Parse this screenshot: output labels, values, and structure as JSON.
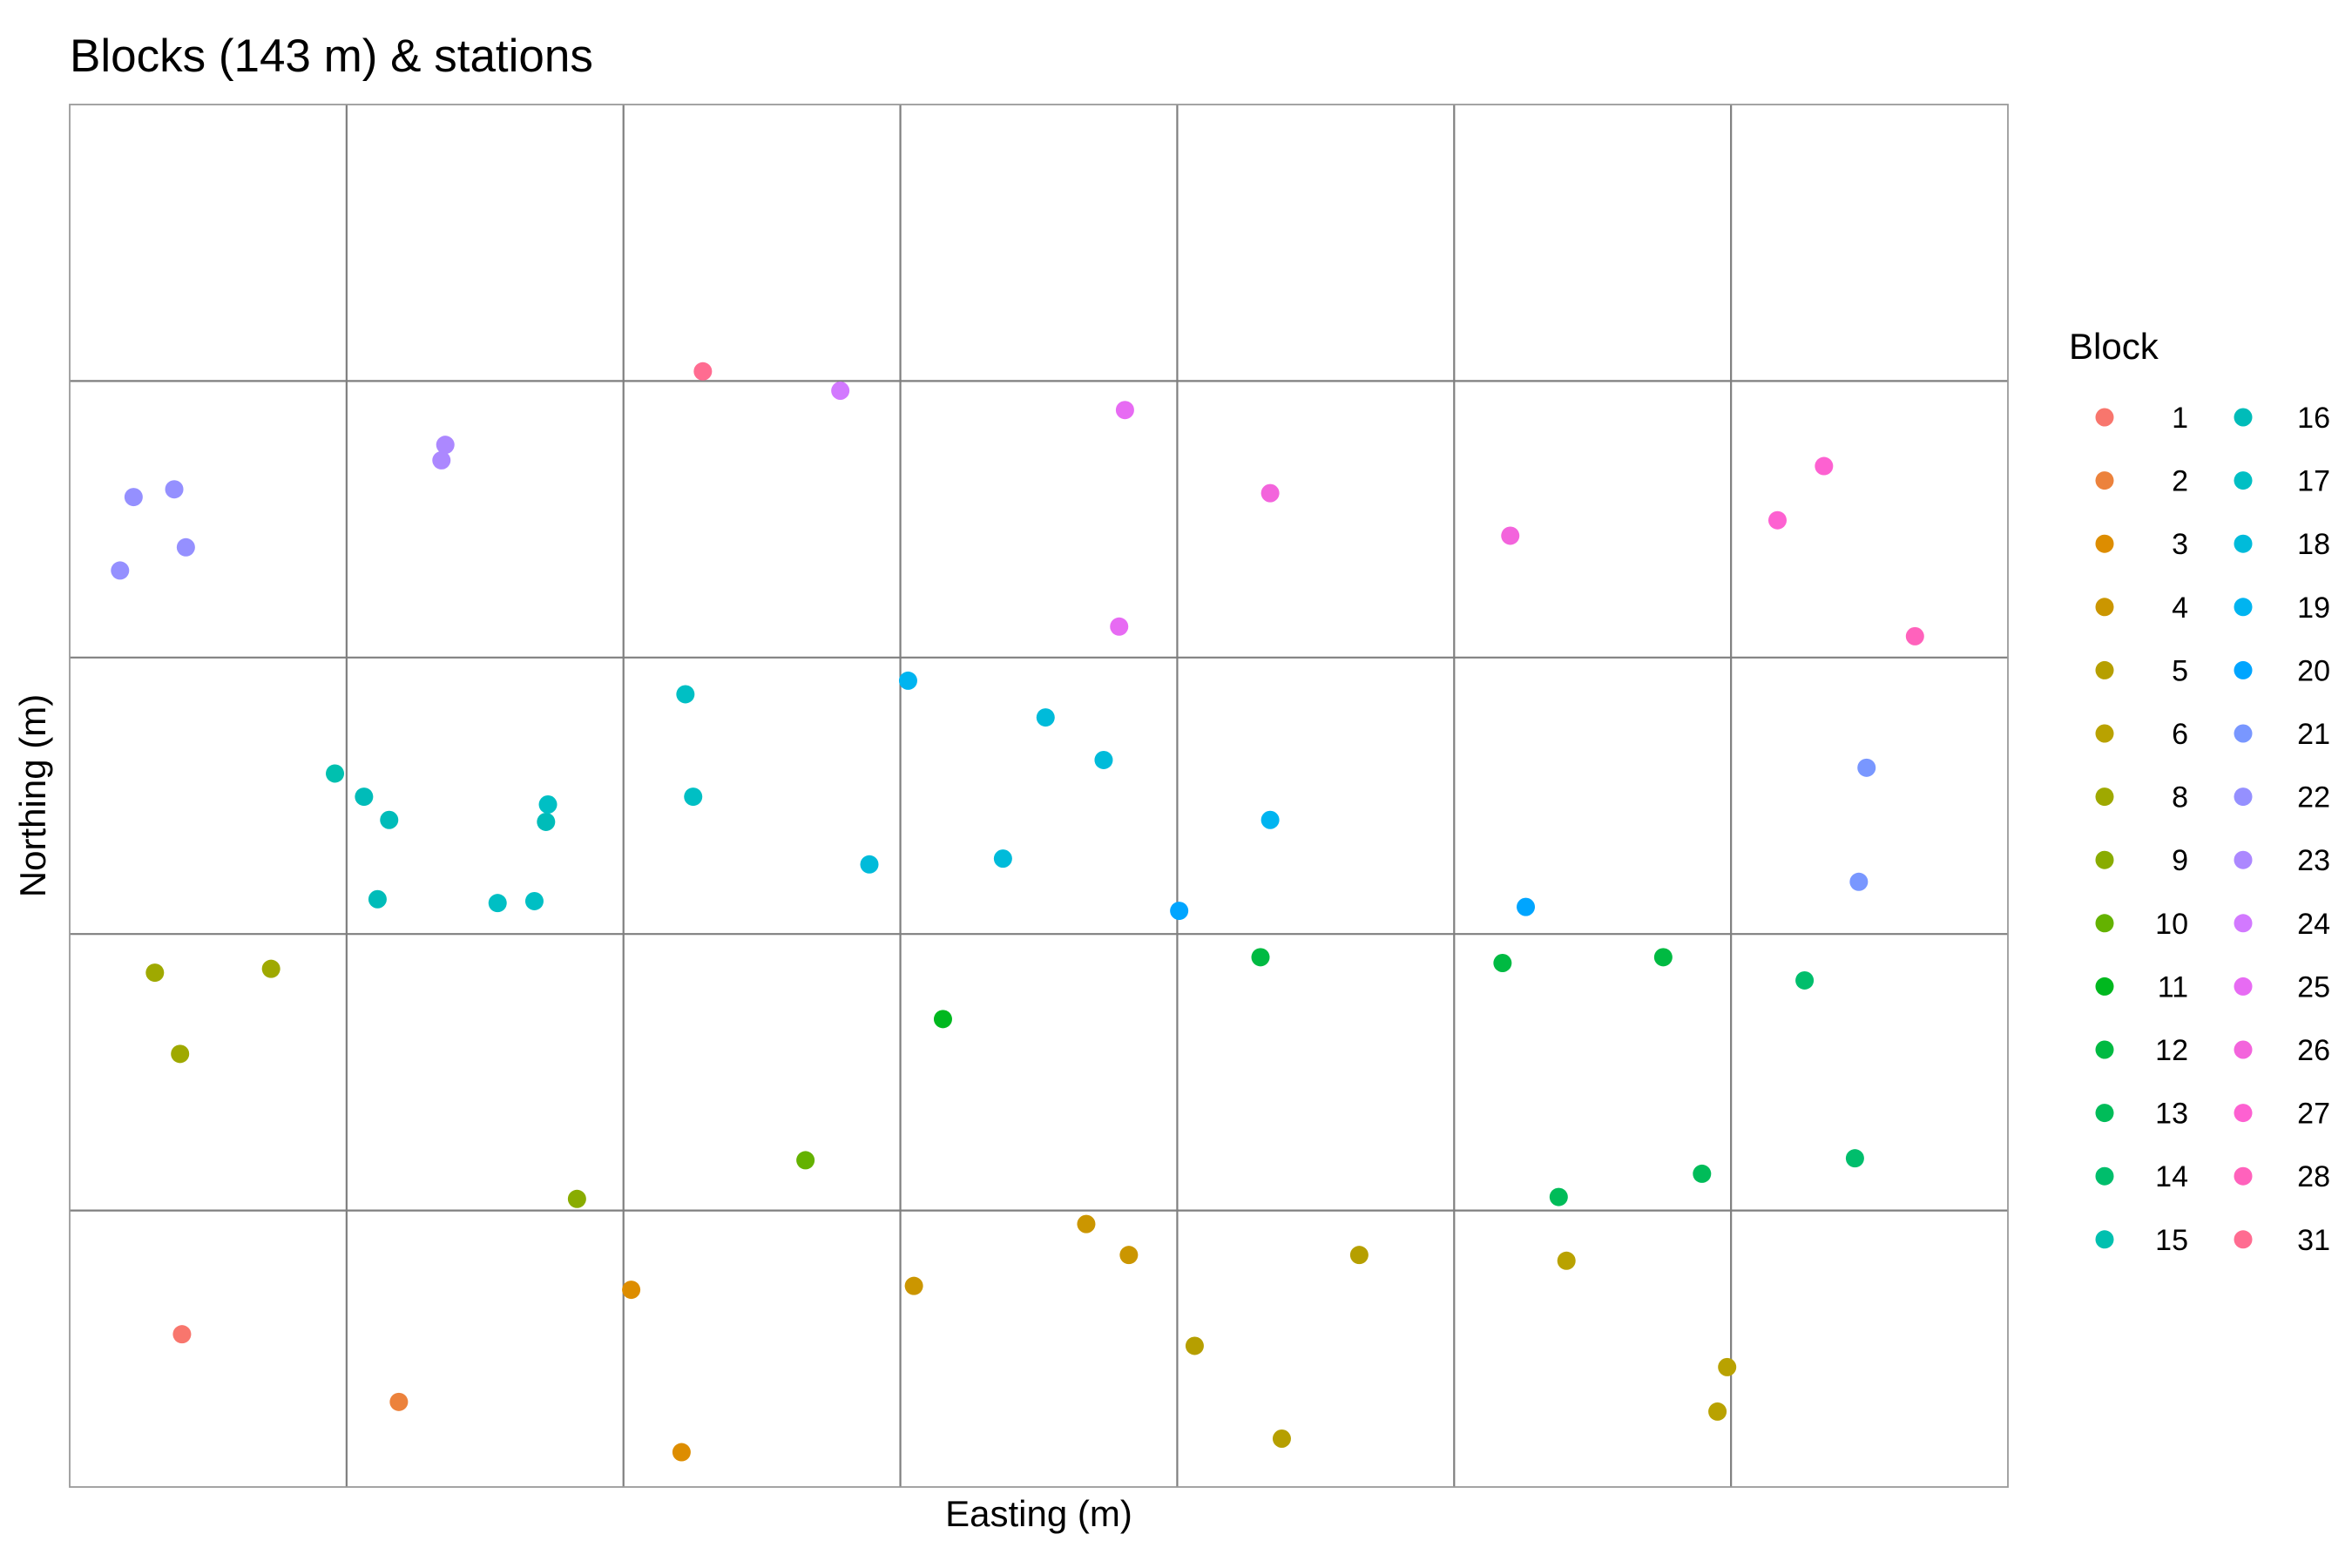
{
  "chart_data": {
    "type": "scatter",
    "title": "Blocks (143 m) & stations",
    "xlabel": "Easting (m)",
    "ylabel": "Northing (m)",
    "xlim": [
      0,
      1001
    ],
    "ylim": [
      0,
      715
    ],
    "grid_x": [
      143,
      286,
      429,
      572,
      715,
      858
    ],
    "grid_y": [
      143,
      286,
      429,
      572
    ],
    "grid": "block boundaries only, no tick labels",
    "legend": {
      "title": "Block",
      "placement": "right",
      "columns": 2
    },
    "series": [
      {
        "name": "1",
        "color": "#F8766D",
        "points": [
          [
            58,
            79
          ]
        ]
      },
      {
        "name": "2",
        "color": "#EC823C",
        "points": [
          [
            170,
            44
          ]
        ]
      },
      {
        "name": "3",
        "color": "#DD8D00",
        "points": [
          [
            290,
            102
          ],
          [
            316,
            18
          ]
        ]
      },
      {
        "name": "4",
        "color": "#CB9600",
        "points": [
          [
            436,
            104
          ],
          [
            525,
            136
          ],
          [
            547,
            120
          ]
        ]
      },
      {
        "name": "5",
        "color": "#B69F00",
        "points": [
          [
            581,
            73
          ],
          [
            626,
            25
          ],
          [
            666,
            120
          ]
        ]
      },
      {
        "name": "6",
        "color": "#B9A200",
        "points": [
          [
            773,
            117
          ],
          [
            856,
            62
          ],
          [
            851,
            39
          ]
        ]
      },
      {
        "name": "8",
        "color": "#9FA900",
        "points": [
          [
            44,
            266
          ],
          [
            104,
            268
          ],
          [
            57,
            224
          ]
        ]
      },
      {
        "name": "9",
        "color": "#89AC00",
        "points": [
          [
            262,
            149
          ]
        ]
      },
      {
        "name": "10",
        "color": "#64B200",
        "points": [
          [
            380,
            169
          ]
        ]
      },
      {
        "name": "11",
        "color": "#00B81F",
        "points": [
          [
            451,
            242
          ]
        ]
      },
      {
        "name": "12",
        "color": "#00BA42",
        "points": [
          [
            615,
            274
          ],
          [
            740,
            271
          ],
          [
            823,
            274
          ]
        ]
      },
      {
        "name": "13",
        "color": "#00BC59",
        "points": [
          [
            769,
            150
          ],
          [
            843,
            162
          ]
        ]
      },
      {
        "name": "14",
        "color": "#00BE6C",
        "points": [
          [
            896,
            262
          ],
          [
            922,
            170
          ]
        ]
      },
      {
        "name": "15",
        "color": "#00C0AF",
        "points": [
          [
            137,
            369
          ]
        ]
      },
      {
        "name": "16",
        "color": "#00BCB9",
        "points": [
          [
            152,
            357
          ],
          [
            165,
            345
          ],
          [
            246,
            344
          ],
          [
            159,
            304
          ]
        ]
      },
      {
        "name": "17",
        "color": "#00BFC4",
        "points": [
          [
            221,
            302
          ],
          [
            240,
            303
          ],
          [
            247,
            353
          ],
          [
            318,
            410
          ],
          [
            322,
            357
          ]
        ]
      },
      {
        "name": "18",
        "color": "#00BBDA",
        "points": [
          [
            413,
            322
          ],
          [
            482,
            325
          ],
          [
            504,
            398
          ],
          [
            534,
            376
          ]
        ]
      },
      {
        "name": "19",
        "color": "#00B4F0",
        "points": [
          [
            433,
            417
          ],
          [
            620,
            345
          ]
        ]
      },
      {
        "name": "20",
        "color": "#00A5FF",
        "points": [
          [
            573,
            298
          ],
          [
            752,
            300
          ]
        ]
      },
      {
        "name": "21",
        "color": "#7997FF",
        "points": [
          [
            928,
            372
          ],
          [
            924,
            313
          ]
        ]
      },
      {
        "name": "22",
        "color": "#9590FF",
        "points": [
          [
            26,
            474
          ],
          [
            33,
            512
          ],
          [
            54,
            516
          ],
          [
            60,
            486
          ]
        ]
      },
      {
        "name": "23",
        "color": "#AC88FF",
        "points": [
          [
            192,
            531
          ],
          [
            194,
            539
          ]
        ]
      },
      {
        "name": "24",
        "color": "#D279FF",
        "points": [
          [
            398,
            567
          ]
        ]
      },
      {
        "name": "25",
        "color": "#E76BF3",
        "points": [
          [
            542,
            445
          ],
          [
            545,
            557
          ]
        ]
      },
      {
        "name": "26",
        "color": "#F364DC",
        "points": [
          [
            620,
            514
          ],
          [
            744,
            492
          ]
        ]
      },
      {
        "name": "27",
        "color": "#FD61D1",
        "points": [
          [
            882,
            500
          ],
          [
            906,
            528
          ]
        ]
      },
      {
        "name": "28",
        "color": "#FF62BC",
        "points": [
          [
            953,
            440
          ]
        ]
      },
      {
        "name": "31",
        "color": "#FF6C91",
        "points": [
          [
            327,
            577
          ]
        ]
      }
    ]
  }
}
